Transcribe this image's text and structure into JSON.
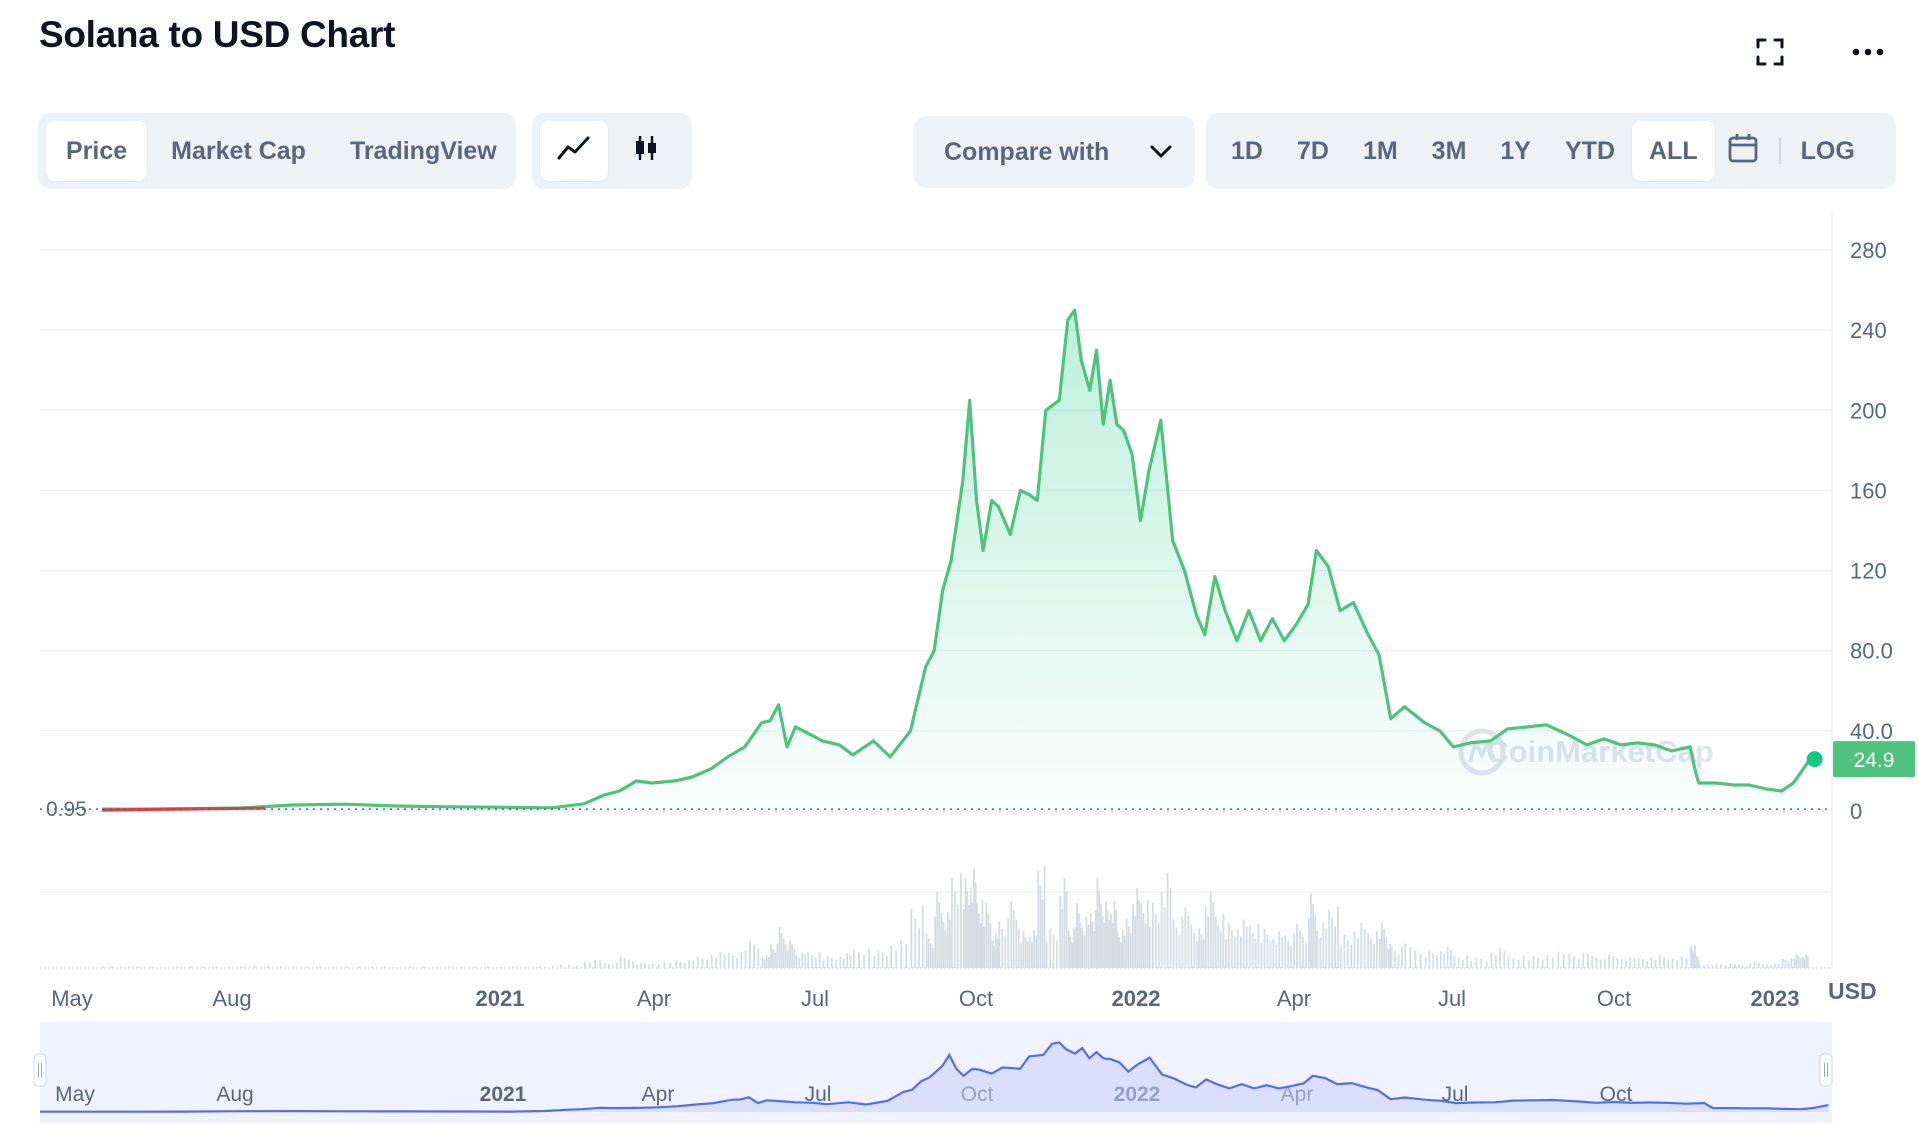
{
  "page": {
    "title": "Solana to USD Chart"
  },
  "toolbar": {
    "views": [
      {
        "label": "Price",
        "active": true
      },
      {
        "label": "Market Cap",
        "active": false
      },
      {
        "label": "TradingView",
        "active": false
      }
    ],
    "chart_types": [
      {
        "icon": "line-chart-icon",
        "active": true
      },
      {
        "icon": "candlestick-chart-icon",
        "active": false
      }
    ],
    "compare_label": "Compare with",
    "ranges": [
      "1D",
      "7D",
      "1M",
      "3M",
      "1Y",
      "YTD",
      "ALL"
    ],
    "active_range": "ALL",
    "calendar_icon": "calendar-icon",
    "log_label": "LOG"
  },
  "icons": {
    "fullscreen": "fullscreen-icon",
    "more": "more-options-icon"
  },
  "colors": {
    "up": "#16c784",
    "line": "#4fc27e",
    "down": "#ea3943",
    "navigator": "#6875e8",
    "accent_bg": "#eff2f5"
  },
  "chart_data": {
    "type": "area",
    "currency_label": "USD",
    "y_ticks": [
      "280",
      "240",
      "200",
      "160",
      "120",
      "80.0",
      "40.0",
      "0"
    ],
    "ylim": [
      0,
      280
    ],
    "x_ticks": [
      {
        "label": "May",
        "bold": false
      },
      {
        "label": "Aug",
        "bold": false
      },
      {
        "label": "2021",
        "bold": true
      },
      {
        "label": "Apr",
        "bold": false
      },
      {
        "label": "Jul",
        "bold": false
      },
      {
        "label": "Oct",
        "bold": false
      },
      {
        "label": "2022",
        "bold": true
      },
      {
        "label": "Apr",
        "bold": false
      },
      {
        "label": "Jul",
        "bold": false
      },
      {
        "label": "Oct",
        "bold": false
      },
      {
        "label": "2023",
        "bold": true
      }
    ],
    "start_price_label": "0.95",
    "current_price_label": "24.9",
    "watermark": "CoinMarketCap",
    "series": [
      {
        "x": [
          "2020-04-10",
          "2020-05-01",
          "2020-06-01",
          "2020-07-01",
          "2020-08-01",
          "2020-09-01",
          "2020-10-01",
          "2020-11-01",
          "2020-12-01",
          "2021-01-01",
          "2021-01-20",
          "2021-02-01",
          "2021-02-10",
          "2021-02-20",
          "2021-03-01",
          "2021-03-15",
          "2021-03-25",
          "2021-04-05",
          "2021-04-15",
          "2021-04-25",
          "2021-05-05",
          "2021-05-10",
          "2021-05-15",
          "2021-05-20",
          "2021-05-25",
          "2021-06-01",
          "2021-06-10",
          "2021-06-20",
          "2021-06-28",
          "2021-07-10",
          "2021-07-20",
          "2021-08-01",
          "2021-08-10",
          "2021-08-15",
          "2021-08-20",
          "2021-08-25",
          "2021-09-01",
          "2021-09-05",
          "2021-09-09",
          "2021-09-13",
          "2021-09-18",
          "2021-09-22",
          "2021-09-29",
          "2021-10-05",
          "2021-10-10",
          "2021-10-15",
          "2021-10-20",
          "2021-10-28",
          "2021-11-02",
          "2021-11-06",
          "2021-11-10",
          "2021-11-15",
          "2021-11-19",
          "2021-11-23",
          "2021-11-27",
          "2021-12-01",
          "2021-12-05",
          "2021-12-10",
          "2021-12-15",
          "2021-12-20",
          "2021-12-27",
          "2022-01-03",
          "2022-01-10",
          "2022-01-17",
          "2022-01-22",
          "2022-01-28",
          "2022-02-03",
          "2022-02-10",
          "2022-02-17",
          "2022-02-24",
          "2022-03-03",
          "2022-03-10",
          "2022-03-17",
          "2022-03-24",
          "2022-03-29",
          "2022-04-05",
          "2022-04-12",
          "2022-04-20",
          "2022-04-28",
          "2022-05-05",
          "2022-05-10",
          "2022-05-12",
          "2022-05-20",
          "2022-06-01",
          "2022-06-10",
          "2022-06-18",
          "2022-06-28",
          "2022-07-10",
          "2022-07-20",
          "2022-08-01",
          "2022-08-12",
          "2022-08-25",
          "2022-09-05",
          "2022-09-15",
          "2022-09-25",
          "2022-10-05",
          "2022-10-15",
          "2022-10-25",
          "2022-11-05",
          "2022-11-08",
          "2022-11-10",
          "2022-11-20",
          "2022-12-01",
          "2022-12-10",
          "2022-12-20",
          "2022-12-29",
          "2023-01-05",
          "2023-01-10",
          "2023-01-14"
        ],
        "values": [
          0.95,
          0.95,
          1.2,
          1.5,
          3.0,
          3.4,
          2.5,
          2.1,
          1.9,
          1.6,
          3.6,
          8.0,
          10.0,
          15.0,
          14.0,
          15.0,
          17.0,
          21.0,
          27.0,
          32.0,
          44.0,
          45.0,
          53.0,
          32.0,
          42.0,
          39.0,
          35.0,
          33.0,
          28.0,
          35.0,
          27.0,
          40.0,
          72.0,
          80.0,
          110.0,
          125.0,
          165.0,
          205.0,
          155.0,
          130.0,
          155.0,
          152.0,
          138.0,
          160.0,
          158.0,
          155.0,
          200.0,
          205.0,
          245.0,
          250.0,
          225.0,
          210.0,
          230.0,
          193.0,
          215.0,
          193.0,
          190.0,
          178.0,
          145.0,
          170.0,
          195.0,
          135.0,
          120.0,
          98.0,
          88.0,
          117.0,
          100.0,
          85.0,
          100.0,
          85.0,
          96.0,
          85.0,
          93.0,
          103.0,
          130.0,
          122.0,
          100.0,
          104.0,
          89.0,
          78.0,
          55.0,
          46.0,
          52.0,
          44.0,
          40.0,
          32.0,
          34.0,
          35.0,
          41.0,
          42.0,
          43.0,
          38.0,
          33.0,
          36.0,
          33.0,
          34.0,
          33.0,
          30.0,
          32.0,
          20.0,
          14.0,
          14.0,
          13.0,
          13.0,
          11.0,
          10.0,
          14.0,
          20.0,
          24.9
        ]
      }
    ],
    "volume_shape": "relative spikes concentrated Aug 2021 - May 2022",
    "navigator": {
      "x_ticks": [
        "May",
        "Aug",
        "2021",
        "Apr",
        "Jul",
        "Oct",
        "2022",
        "Apr",
        "Jul",
        "Oct"
      ]
    }
  }
}
